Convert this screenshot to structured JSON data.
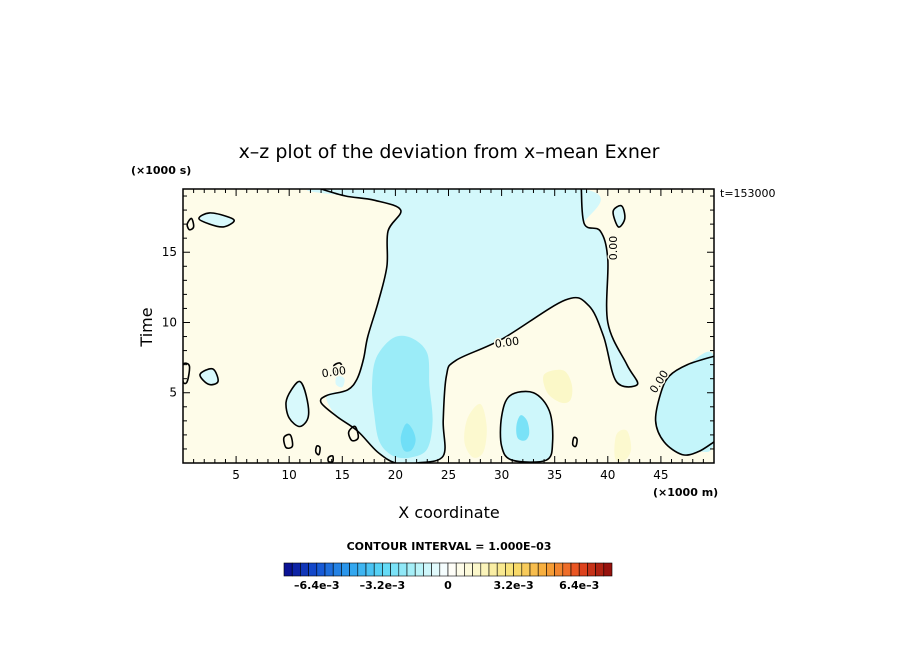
{
  "chart_data": {
    "type": "heatmap",
    "title": "x–z plot of the deviation from x–mean Exner",
    "xlabel": "X coordinate",
    "ylabel": "Time",
    "x_unit": "(×1000 m)",
    "y_unit": "(×1000 s)",
    "time_stamp": "t=153000",
    "xlim": [
      0,
      50
    ],
    "ylim": [
      0,
      19.5
    ],
    "x_ticks": [
      {
        "value": 5,
        "label": "5"
      },
      {
        "value": 10,
        "label": "10"
      },
      {
        "value": 15,
        "label": "15"
      },
      {
        "value": 20,
        "label": "20"
      },
      {
        "value": 25,
        "label": "25"
      },
      {
        "value": 30,
        "label": "30"
      },
      {
        "value": 35,
        "label": "35"
      },
      {
        "value": 40,
        "label": "40"
      },
      {
        "value": 45,
        "label": "45"
      }
    ],
    "y_ticks": [
      {
        "value": 5,
        "label": "5"
      },
      {
        "value": 10,
        "label": "10"
      },
      {
        "value": 15,
        "label": "15"
      }
    ],
    "grid": false,
    "contour_interval_label": "CONTOUR INTERVAL = 1.000E–03",
    "contour_labels": [
      "0.00",
      "0.00",
      "0.00",
      "0.00"
    ],
    "colorbar": {
      "min": -0.008,
      "max": 0.008,
      "n_bins": 40,
      "tick_labels": [
        {
          "value": -0.0064,
          "label": "–6.4e–3"
        },
        {
          "value": -0.0032,
          "label": "–3.2e–3"
        },
        {
          "value": 0,
          "label": "0"
        },
        {
          "value": 0.0032,
          "label": "3.2e–3"
        },
        {
          "value": 0.0064,
          "label": "6.4e–3"
        }
      ],
      "stops": [
        {
          "v": -0.008,
          "c": "#0a0a8c"
        },
        {
          "v": -0.0064,
          "c": "#1450d2"
        },
        {
          "v": -0.0048,
          "c": "#2ea0ee"
        },
        {
          "v": -0.0032,
          "c": "#5ad8f6"
        },
        {
          "v": -0.0016,
          "c": "#b0f2f8"
        },
        {
          "v": 0,
          "c": "#ffffff"
        },
        {
          "v": 0.0016,
          "c": "#fbf7c4"
        },
        {
          "v": 0.0032,
          "c": "#f8e070"
        },
        {
          "v": 0.0048,
          "c": "#f7a838"
        },
        {
          "v": 0.0064,
          "c": "#e84a20"
        },
        {
          "v": 0.008,
          "c": "#8c0a0a"
        }
      ]
    },
    "background_value": 0.0006,
    "regions": [
      {
        "name": "negative-main",
        "value": -0.0009,
        "points": [
          [
            13,
            19.5
          ],
          [
            37.5,
            19.5
          ],
          [
            37.8,
            17
          ],
          [
            39.3,
            16.5
          ],
          [
            40,
            14.5
          ],
          [
            40,
            10
          ],
          [
            41.8,
            7
          ],
          [
            42.8,
            5.6
          ],
          [
            40.8,
            5.8
          ],
          [
            39.6,
            9
          ],
          [
            38.2,
            11.2
          ],
          [
            36,
            11.6
          ],
          [
            30,
            8.8
          ],
          [
            25.7,
            7.3
          ],
          [
            24.8,
            6.2
          ],
          [
            24.5,
            3
          ],
          [
            24.5,
            0.5
          ],
          [
            22,
            0
          ],
          [
            20,
            0
          ],
          [
            18.3,
            0.8
          ],
          [
            16.4,
            2.3
          ],
          [
            14.5,
            3.3
          ],
          [
            13.5,
            4.8
          ],
          [
            15.5,
            5.2
          ],
          [
            16.4,
            6
          ],
          [
            17,
            7.4
          ],
          [
            17.4,
            9
          ],
          [
            18.4,
            11.5
          ],
          [
            19.2,
            14
          ],
          [
            19.3,
            16.5
          ],
          [
            20.5,
            18
          ],
          [
            18,
            18.7
          ],
          [
            15.3,
            19
          ]
        ]
      },
      {
        "name": "negative-right",
        "value": -0.0012,
        "points": [
          [
            50,
            7.6
          ],
          [
            47.5,
            7
          ],
          [
            45.8,
            6.2
          ],
          [
            45,
            5
          ],
          [
            44.5,
            3
          ],
          [
            45.3,
            1.5
          ],
          [
            47,
            0.6
          ],
          [
            48.5,
            0.8
          ],
          [
            50,
            1.5
          ]
        ]
      },
      {
        "name": "negative-peak-left",
        "value": -0.002,
        "points": [
          [
            18.2,
            7.5
          ],
          [
            19.8,
            8.9
          ],
          [
            21.5,
            8.9
          ],
          [
            23,
            7.8
          ],
          [
            23.2,
            5.5
          ],
          [
            23.5,
            3
          ],
          [
            23,
            1
          ],
          [
            21.5,
            0.4
          ],
          [
            19.8,
            0.5
          ],
          [
            18.5,
            1.5
          ],
          [
            18,
            3.5
          ],
          [
            17.8,
            5.5
          ]
        ]
      },
      {
        "name": "negative-peak-left-core",
        "value": -0.0028,
        "points": [
          [
            21,
            2.8
          ],
          [
            21.6,
            2.4
          ],
          [
            21.9,
            1.6
          ],
          [
            21.5,
            0.9
          ],
          [
            20.8,
            0.9
          ],
          [
            20.5,
            1.8
          ]
        ]
      },
      {
        "name": "negative-center",
        "value": -0.001,
        "points": [
          [
            30.8,
            4.8
          ],
          [
            33,
            5
          ],
          [
            34.5,
            3.7
          ],
          [
            34.8,
            1.5
          ],
          [
            34.2,
            0.2
          ],
          [
            31,
            0.2
          ],
          [
            30,
            1.2
          ],
          [
            30,
            3.3
          ]
        ]
      },
      {
        "name": "negative-center-core",
        "value": -0.0026,
        "points": [
          [
            31.8,
            3.4
          ],
          [
            32.4,
            3
          ],
          [
            32.6,
            2.1
          ],
          [
            32.2,
            1.6
          ],
          [
            31.5,
            1.8
          ],
          [
            31.4,
            2.7
          ]
        ]
      },
      {
        "name": "negative-small-1",
        "value": -0.0008,
        "points": [
          [
            14.5,
            6.2
          ],
          [
            15.2,
            6
          ],
          [
            15,
            5.4
          ],
          [
            14.4,
            5.6
          ]
        ]
      },
      {
        "name": "negative-small-2",
        "value": -0.0008,
        "points": [
          [
            10.2,
            5.2
          ],
          [
            11,
            5.8
          ],
          [
            11.6,
            4.8
          ],
          [
            11.8,
            3.3
          ],
          [
            11,
            2.6
          ],
          [
            10,
            3.2
          ],
          [
            9.7,
            4.3
          ]
        ]
      },
      {
        "name": "negative-small-3",
        "value": -0.0008,
        "points": [
          [
            1.6,
            6.3
          ],
          [
            2.8,
            6.7
          ],
          [
            3.3,
            5.8
          ],
          [
            2.4,
            5.6
          ]
        ]
      },
      {
        "name": "negative-small-4",
        "value": -0.0008,
        "points": [
          [
            1.5,
            17.4
          ],
          [
            2.5,
            17.8
          ],
          [
            4.3,
            17.5
          ],
          [
            4.8,
            17.2
          ],
          [
            3.8,
            16.8
          ],
          [
            2.5,
            17
          ]
        ]
      },
      {
        "name": "negative-small-5",
        "value": -0.0008,
        "points": [
          [
            40.5,
            17.9
          ],
          [
            41.3,
            18.3
          ],
          [
            41.6,
            17.4
          ],
          [
            41,
            16.8
          ]
        ]
      },
      {
        "name": "positive-1",
        "value": 0.0015,
        "points": [
          [
            34,
            6.3
          ],
          [
            35.8,
            6.6
          ],
          [
            36.6,
            5.6
          ],
          [
            36.5,
            4.5
          ],
          [
            35.6,
            4.3
          ],
          [
            34.3,
            5
          ]
        ]
      },
      {
        "name": "positive-2",
        "value": 0.0013,
        "points": [
          [
            26.8,
            3.2
          ],
          [
            28,
            4.2
          ],
          [
            28.6,
            2.6
          ],
          [
            28.3,
            0.8
          ],
          [
            27.3,
            0.4
          ],
          [
            26.5,
            1.5
          ]
        ]
      },
      {
        "name": "positive-3",
        "value": 0.0013,
        "points": [
          [
            40.8,
            2
          ],
          [
            41.8,
            2.3
          ],
          [
            42.2,
            1
          ],
          [
            41.6,
            0.2
          ],
          [
            40.7,
            0.3
          ]
        ]
      }
    ],
    "contours": [
      {
        "name": "contour-zero-main",
        "level": 0,
        "closed": false,
        "points": [
          [
            13,
            19.5
          ],
          [
            15.3,
            19
          ],
          [
            18,
            18.7
          ],
          [
            20.5,
            18
          ],
          [
            19.3,
            16.5
          ],
          [
            19.2,
            14
          ],
          [
            18.4,
            11.5
          ],
          [
            17.4,
            9
          ],
          [
            17,
            7.4
          ],
          [
            16.4,
            6
          ],
          [
            15.5,
            5.2
          ],
          [
            13.5,
            4.8
          ],
          [
            13,
            4.3
          ],
          [
            14.5,
            3.3
          ],
          [
            16.4,
            2.3
          ],
          [
            18.3,
            0.8
          ],
          [
            20,
            0
          ],
          [
            22,
            0
          ],
          [
            24.5,
            0.5
          ],
          [
            24.5,
            3
          ],
          [
            24.8,
            6.2
          ],
          [
            25.7,
            7.3
          ],
          [
            30,
            8.8
          ],
          [
            36,
            11.6
          ],
          [
            38.2,
            11.2
          ],
          [
            39.6,
            9
          ],
          [
            40.8,
            5.8
          ],
          [
            42.8,
            5.6
          ],
          [
            41.8,
            7
          ],
          [
            40,
            10
          ],
          [
            40,
            14.5
          ],
          [
            39.3,
            16.5
          ],
          [
            37.8,
            17
          ],
          [
            37.5,
            19.5
          ]
        ]
      },
      {
        "name": "contour-zero-right",
        "level": 0,
        "closed": false,
        "points": [
          [
            50,
            7.6
          ],
          [
            47.5,
            7
          ],
          [
            45.8,
            6.2
          ],
          [
            45,
            5
          ],
          [
            44.5,
            3
          ],
          [
            45.3,
            1.5
          ],
          [
            47,
            0.6
          ],
          [
            48.5,
            0.8
          ],
          [
            50,
            1.5
          ]
        ]
      },
      {
        "name": "contour-zero-center",
        "level": 0,
        "closed": true,
        "points": [
          [
            30.8,
            4.8
          ],
          [
            33,
            5
          ],
          [
            34.5,
            3.7
          ],
          [
            34.8,
            1.5
          ],
          [
            34.2,
            0.2
          ],
          [
            31,
            0.2
          ],
          [
            30,
            1.2
          ],
          [
            30,
            3.3
          ]
        ]
      },
      {
        "name": "contour-zero-left-lobe",
        "level": 0,
        "closed": true,
        "points": [
          [
            10.2,
            5.2
          ],
          [
            11,
            5.8
          ],
          [
            11.6,
            4.8
          ],
          [
            11.8,
            3.3
          ],
          [
            11,
            2.6
          ],
          [
            10,
            3.2
          ],
          [
            9.7,
            4.3
          ]
        ]
      },
      {
        "name": "contour-zero-small-1",
        "level": 0,
        "closed": true,
        "points": [
          [
            1.6,
            6.3
          ],
          [
            2.8,
            6.7
          ],
          [
            3.3,
            5.8
          ],
          [
            2.4,
            5.6
          ]
        ]
      },
      {
        "name": "contour-zero-small-2",
        "level": 0,
        "closed": true,
        "points": [
          [
            1.5,
            17.4
          ],
          [
            2.5,
            17.8
          ],
          [
            4.3,
            17.5
          ],
          [
            4.8,
            17.2
          ],
          [
            3.8,
            16.8
          ],
          [
            2.5,
            17
          ]
        ]
      },
      {
        "name": "contour-zero-small-3",
        "level": 0,
        "closed": true,
        "points": [
          [
            0.4,
            17
          ],
          [
            0.8,
            17.4
          ],
          [
            1,
            16.8
          ],
          [
            0.6,
            16.6
          ]
        ]
      },
      {
        "name": "contour-zero-small-4",
        "level": 0,
        "closed": true,
        "points": [
          [
            9.5,
            1.8
          ],
          [
            10.1,
            2
          ],
          [
            10.3,
            1.2
          ],
          [
            9.7,
            1.1
          ]
        ]
      },
      {
        "name": "contour-zero-small-5",
        "level": 0,
        "closed": true,
        "points": [
          [
            12.6,
            1.2
          ],
          [
            12.9,
            1.1
          ],
          [
            12.8,
            0.6
          ],
          [
            12.5,
            0.8
          ]
        ]
      },
      {
        "name": "contour-zero-small-6",
        "level": 0,
        "closed": true,
        "points": [
          [
            15.6,
            2.2
          ],
          [
            16.2,
            2.6
          ],
          [
            16.5,
            1.8
          ],
          [
            15.9,
            1.6
          ]
        ]
      },
      {
        "name": "contour-zero-small-7",
        "level": 0,
        "closed": true,
        "points": [
          [
            36.8,
            1.8
          ],
          [
            37.1,
            1.7
          ],
          [
            37,
            1.2
          ],
          [
            36.7,
            1.3
          ]
        ]
      },
      {
        "name": "contour-zero-small-8",
        "level": 0,
        "closed": true,
        "points": [
          [
            40.5,
            17.9
          ],
          [
            41.3,
            18.3
          ],
          [
            41.6,
            17.4
          ],
          [
            41,
            16.8
          ]
        ]
      },
      {
        "name": "contour-zero-small-9",
        "level": 0,
        "closed": true,
        "points": [
          [
            14.2,
            6.9
          ],
          [
            14.8,
            7.1
          ],
          [
            15.1,
            6.5
          ],
          [
            14.5,
            6.4
          ]
        ]
      },
      {
        "name": "contour-zero-small-10",
        "level": 0,
        "closed": true,
        "points": [
          [
            13.7,
            0.4
          ],
          [
            14.1,
            0.5
          ],
          [
            14.1,
            0.1
          ],
          [
            13.7,
            0.1
          ]
        ]
      },
      {
        "name": "contour-zero-small-11",
        "level": 0,
        "closed": true,
        "points": [
          [
            0,
            7
          ],
          [
            0.6,
            6.9
          ],
          [
            0.4,
            5.8
          ],
          [
            0,
            5.8
          ]
        ]
      }
    ],
    "contour_label_positions": [
      {
        "text_index": 0,
        "x": 14.2,
        "y": 6.5,
        "angle": -8
      },
      {
        "text_index": 1,
        "x": 30.5,
        "y": 8.6,
        "angle": -8
      },
      {
        "text_index": 2,
        "x": 40.5,
        "y": 15.3,
        "angle": -90
      },
      {
        "text_index": 3,
        "x": 44.8,
        "y": 5.8,
        "angle": -58
      }
    ]
  }
}
